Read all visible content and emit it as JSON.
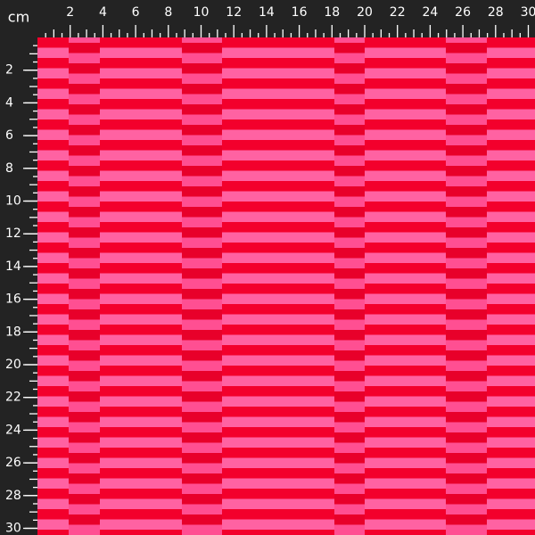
{
  "ruler": {
    "unit": "cm",
    "top_labels": [
      2,
      4,
      6,
      8,
      10,
      12,
      14,
      16,
      18,
      20,
      22,
      24,
      26,
      28,
      30
    ],
    "left_labels": [
      2,
      4,
      6,
      8,
      10,
      12,
      14,
      16,
      18,
      20,
      22,
      24,
      26,
      28,
      30
    ]
  }
}
